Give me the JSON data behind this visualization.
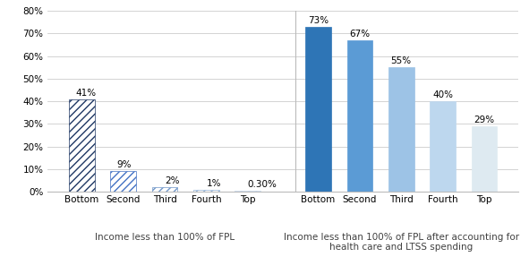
{
  "group1_labels": [
    "Bottom",
    "Second",
    "Third",
    "Fourth",
    "Top"
  ],
  "group1_values": [
    41,
    9,
    2,
    1,
    0.3
  ],
  "group1_value_labels": [
    "41%",
    "9%",
    "2%",
    "1%",
    "0.30%"
  ],
  "group2_labels": [
    "Bottom",
    "Second",
    "Third",
    "Fourth",
    "Top"
  ],
  "group2_values": [
    73,
    67,
    55,
    40,
    29
  ],
  "group2_value_labels": [
    "73%",
    "67%",
    "55%",
    "40%",
    "29%"
  ],
  "group1_hatch_edgecolors": [
    "#1F3864",
    "#4472C4",
    "#7096C8",
    "#95B3D7",
    "#BDD0E8"
  ],
  "group2_colors": [
    "#2E75B6",
    "#5B9BD5",
    "#9DC3E6",
    "#BDD7EE",
    "#DEEAF1"
  ],
  "group2_edgecolors": [
    "#2E75B6",
    "#5B9BD5",
    "#9DC3E6",
    "#BDD7EE",
    "#DEEAF1"
  ],
  "group1_xlabel": "Income less than 100% of FPL",
  "group2_xlabel": "Income less than 100% of FPL after accounting for\nhealth care and LTSS spending",
  "ylim": [
    0,
    80
  ],
  "yticks": [
    0,
    10,
    20,
    30,
    40,
    50,
    60,
    70,
    80
  ],
  "ytick_labels": [
    "0%",
    "10%",
    "20%",
    "30%",
    "40%",
    "50%",
    "60%",
    "70%",
    "80%"
  ],
  "bar_width": 0.62,
  "tick_fontsize": 7.5,
  "value_fontsize": 7.5,
  "xlabel_fontsize": 7.5
}
